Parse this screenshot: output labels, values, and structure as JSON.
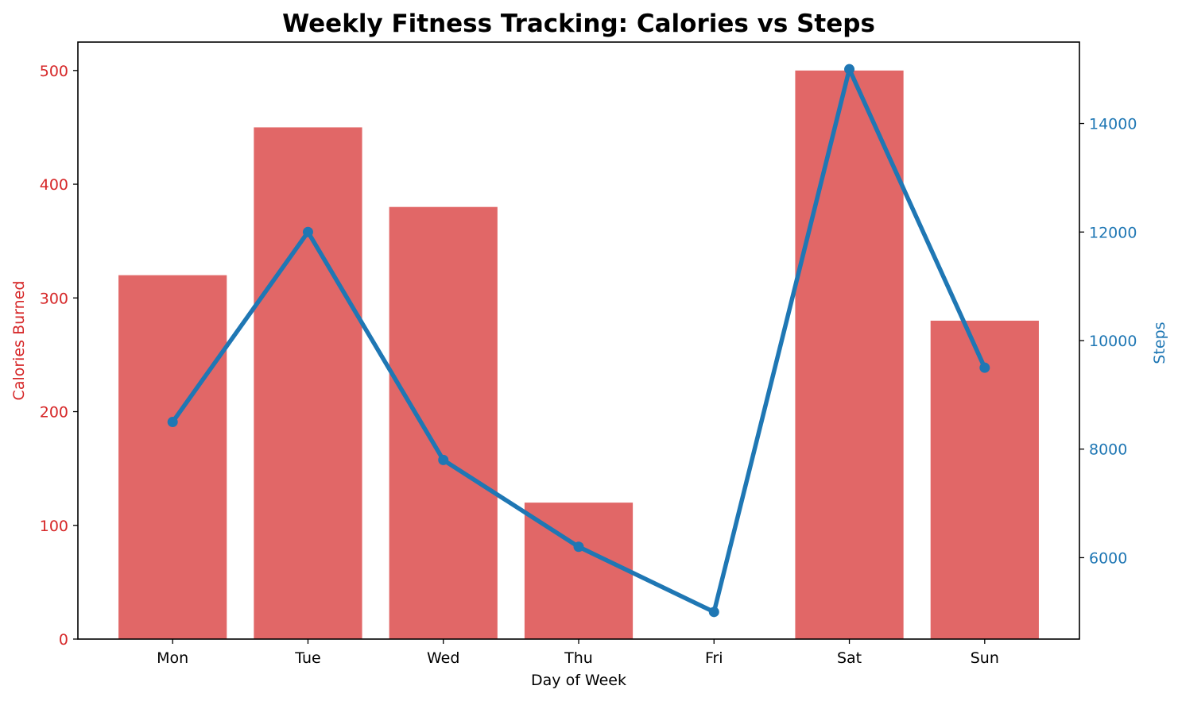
{
  "chart_data": {
    "type": "bar+line",
    "title": "Weekly Fitness Tracking: Calories vs Steps",
    "xlabel": "Day of Week",
    "categories": [
      "Mon",
      "Tue",
      "Wed",
      "Thu",
      "Fri",
      "Sat",
      "Sun"
    ],
    "series": [
      {
        "type": "bar",
        "axis": "left",
        "values": [
          320,
          450,
          380,
          120,
          0,
          500,
          280
        ],
        "color": "#e16767"
      },
      {
        "type": "line",
        "axis": "right",
        "values": [
          8500,
          12000,
          7800,
          6200,
          5000,
          15000,
          9500
        ],
        "color": "#1f77b4",
        "marker": "circle"
      }
    ],
    "left_axis": {
      "label": "Calories Burned",
      "range": [
        0,
        525
      ],
      "ticks": [
        0,
        100,
        200,
        300,
        400,
        500
      ],
      "color": "#d62728"
    },
    "right_axis": {
      "label": "Steps",
      "range": [
        4500,
        15500
      ],
      "ticks": [
        6000,
        8000,
        10000,
        12000,
        14000
      ],
      "color": "#1f77b4"
    },
    "grid": false,
    "legend": "none"
  }
}
